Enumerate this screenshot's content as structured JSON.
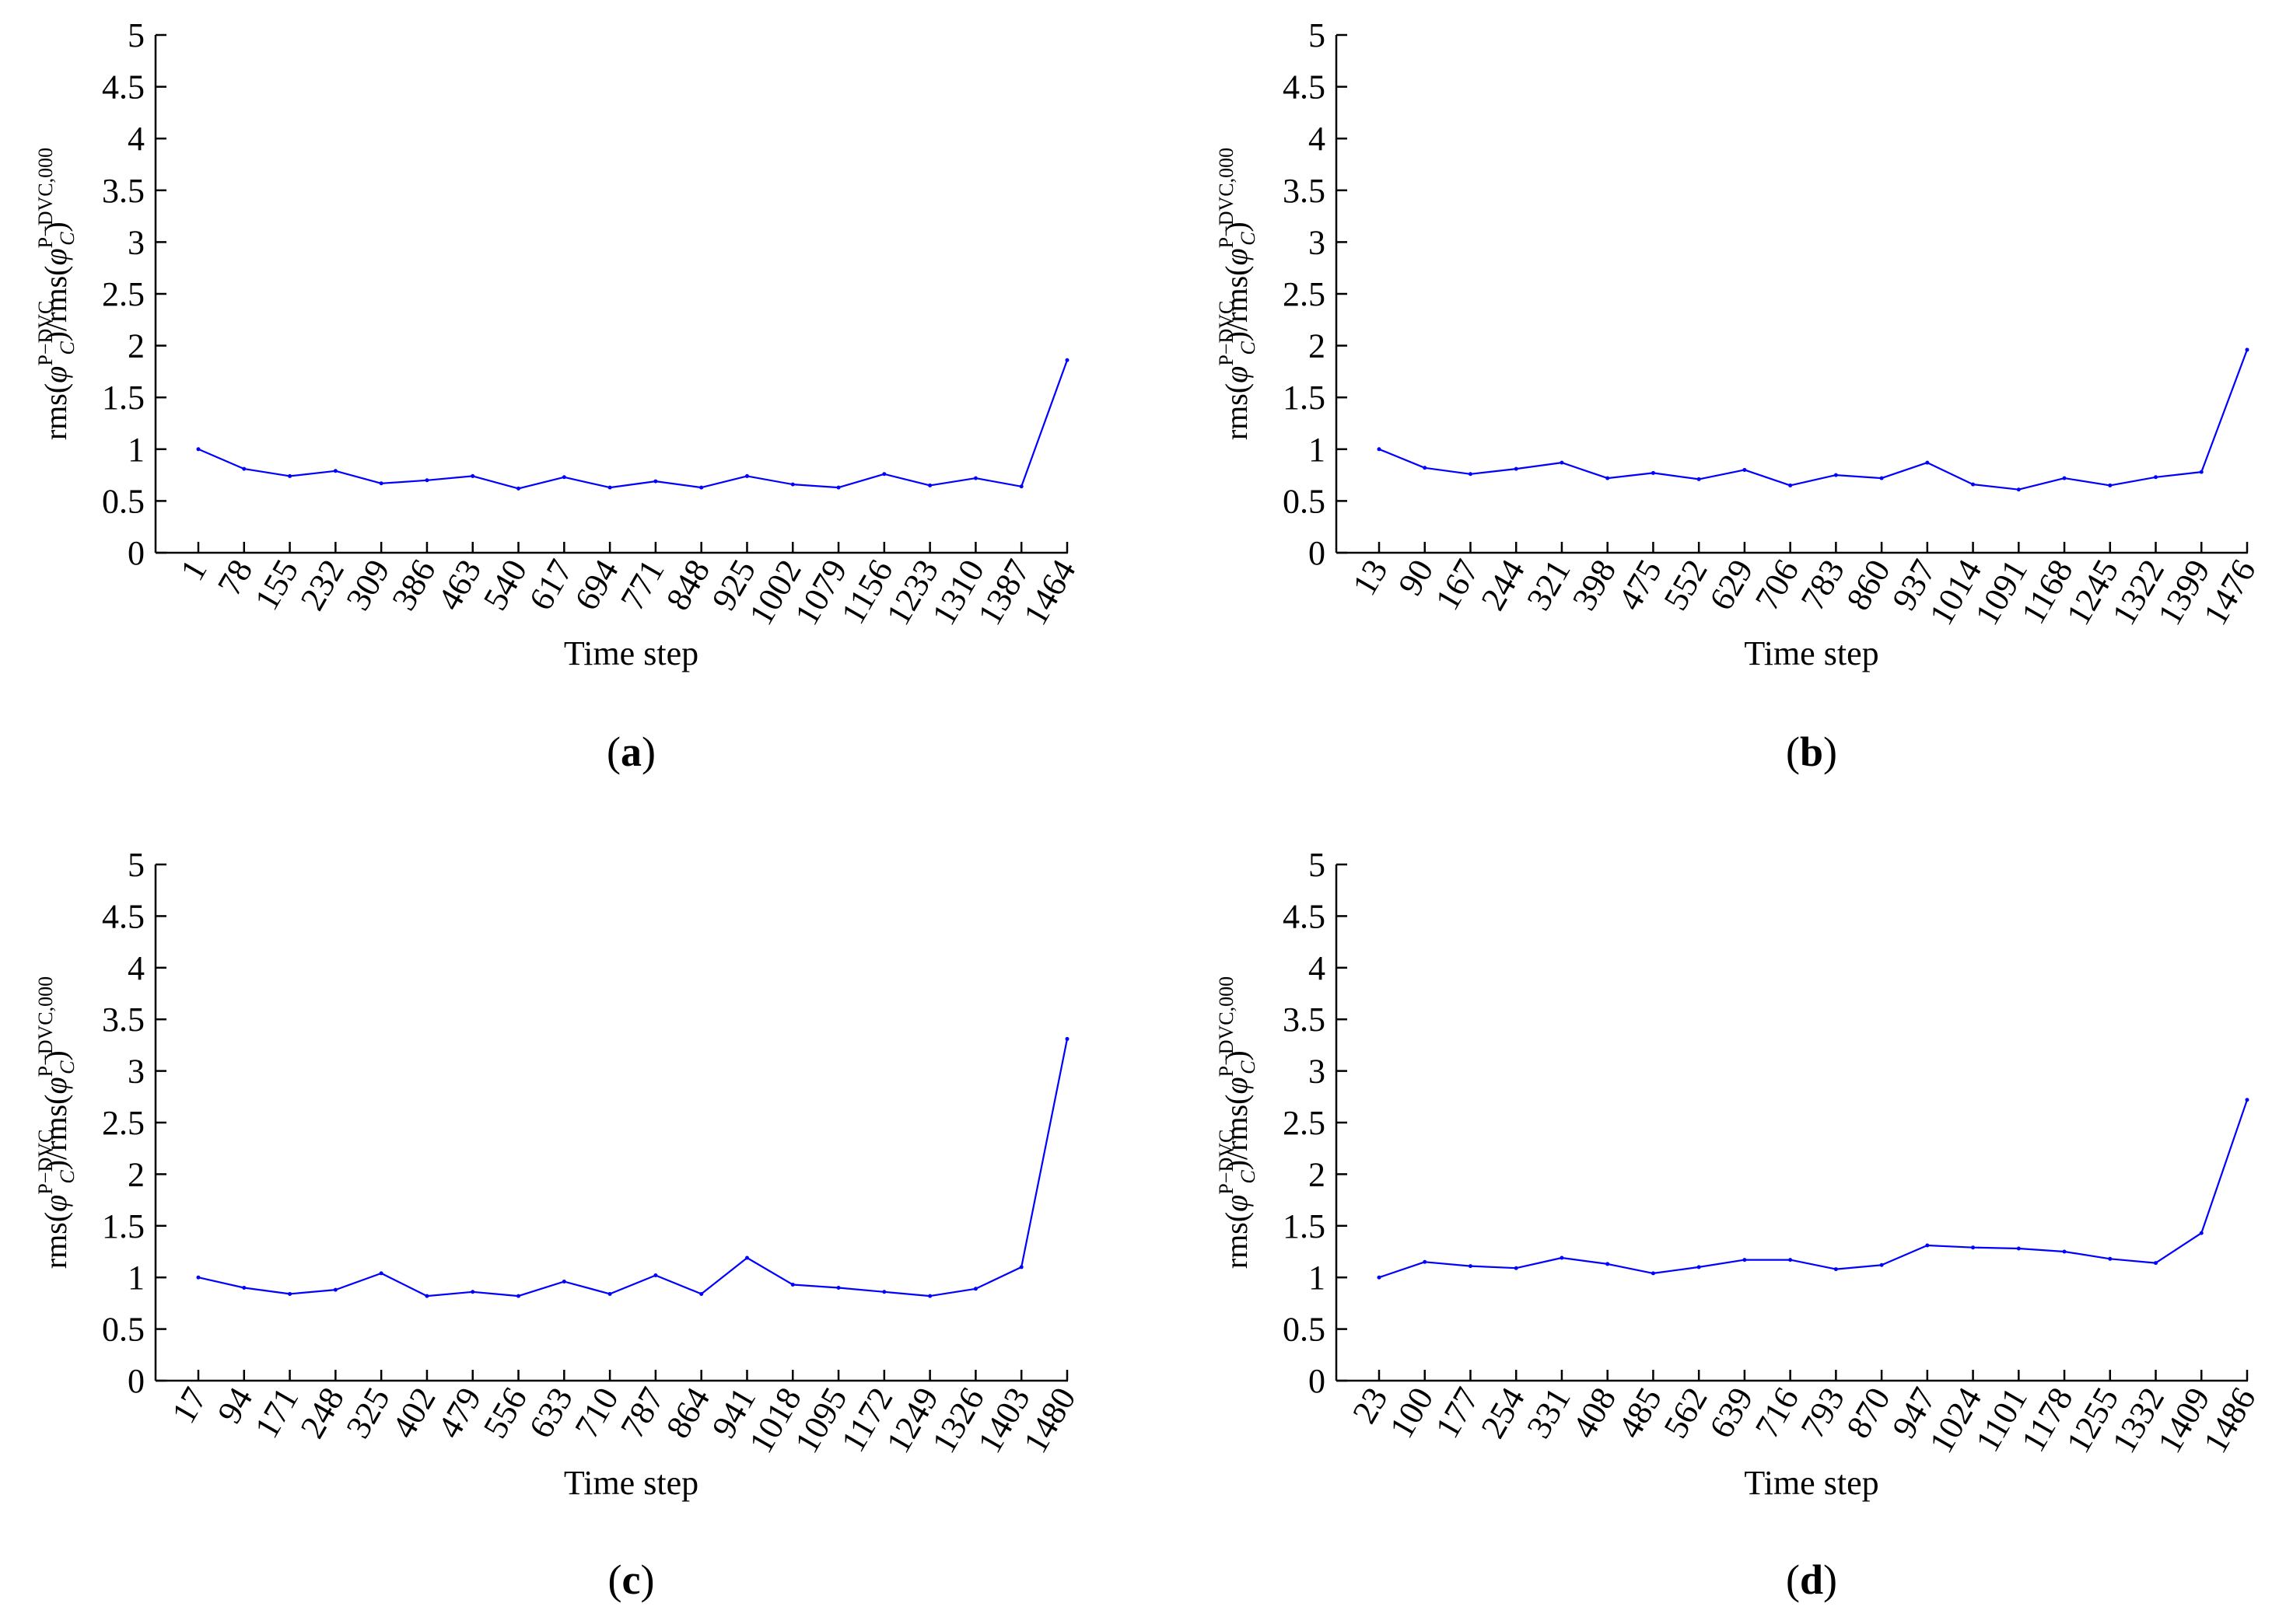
{
  "colors": {
    "line": "#0000ff",
    "axis": "#000000",
    "background": "#ffffff"
  },
  "chart_data": [
    {
      "type": "line",
      "caption": "(a)",
      "caption_letter": "a",
      "xlabel": "Time step",
      "ylabel": "rms(φ_C^{P−DVC})/rms(φ_C^{P−DVC,000})",
      "ylim": [
        0,
        5
      ],
      "yticks": [
        "0",
        "0.5",
        "1",
        "1.5",
        "2",
        "2.5",
        "3",
        "3.5",
        "4",
        "4.5",
        "5"
      ],
      "grid": false,
      "categories": [
        "1",
        "78",
        "155",
        "232",
        "309",
        "386",
        "463",
        "540",
        "617",
        "694",
        "771",
        "848",
        "925",
        "1002",
        "1079",
        "1156",
        "1233",
        "1310",
        "1387",
        "1464"
      ],
      "series": [
        {
          "values": [
            1.0,
            0.81,
            0.74,
            0.79,
            0.67,
            0.7,
            0.74,
            0.62,
            0.73,
            0.63,
            0.69,
            0.63,
            0.74,
            0.66,
            0.63,
            0.76,
            0.65,
            0.72,
            0.64,
            1.86
          ]
        }
      ]
    },
    {
      "type": "line",
      "caption": "(b)",
      "caption_letter": "b",
      "xlabel": "Time step",
      "ylabel": "rms(φ_C^{P−DVC})/rms(φ_C^{P−DVC,000})",
      "ylim": [
        0,
        5
      ],
      "yticks": [
        "0",
        "0.5",
        "1",
        "1.5",
        "2",
        "2.5",
        "3",
        "3.5",
        "4",
        "4.5",
        "5"
      ],
      "grid": false,
      "categories": [
        "13",
        "90",
        "167",
        "244",
        "321",
        "398",
        "475",
        "552",
        "629",
        "706",
        "783",
        "860",
        "937",
        "1014",
        "1091",
        "1168",
        "1245",
        "1322",
        "1399",
        "1476"
      ],
      "series": [
        {
          "values": [
            1.0,
            0.82,
            0.76,
            0.81,
            0.87,
            0.72,
            0.77,
            0.71,
            0.8,
            0.65,
            0.75,
            0.72,
            0.87,
            0.66,
            0.61,
            0.72,
            0.65,
            0.73,
            0.78,
            1.96
          ]
        }
      ]
    },
    {
      "type": "line",
      "caption": "(c)",
      "caption_letter": "c",
      "xlabel": "Time step",
      "ylabel": "rms(φ_C^{P−DVC})/rms(φ_C^{P−DVC,000})",
      "ylim": [
        0,
        5
      ],
      "yticks": [
        "0",
        "0.5",
        "1",
        "1.5",
        "2",
        "2.5",
        "3",
        "3.5",
        "4",
        "4.5",
        "5"
      ],
      "grid": false,
      "categories": [
        "17",
        "94",
        "171",
        "248",
        "325",
        "402",
        "479",
        "556",
        "633",
        "710",
        "787",
        "864",
        "941",
        "1018",
        "1095",
        "1172",
        "1249",
        "1326",
        "1403",
        "1480"
      ],
      "series": [
        {
          "values": [
            1.0,
            0.9,
            0.84,
            0.88,
            1.04,
            0.82,
            0.86,
            0.82,
            0.96,
            0.84,
            1.02,
            0.84,
            1.19,
            0.93,
            0.9,
            0.86,
            0.82,
            0.89,
            1.1,
            3.31
          ]
        }
      ]
    },
    {
      "type": "line",
      "caption": "(d)",
      "caption_letter": "d",
      "xlabel": "Time step",
      "ylabel": "rms(φ_C^{P−DVC})/rms(φ_C^{P−DVC,000})",
      "ylim": [
        0,
        5
      ],
      "yticks": [
        "0",
        "0.5",
        "1",
        "1.5",
        "2",
        "2.5",
        "3",
        "3.5",
        "4",
        "4.5",
        "5"
      ],
      "grid": false,
      "categories": [
        "23",
        "100",
        "177",
        "254",
        "331",
        "408",
        "485",
        "562",
        "639",
        "716",
        "793",
        "870",
        "947",
        "1024",
        "1101",
        "1178",
        "1255",
        "1332",
        "1409",
        "1486"
      ],
      "series": [
        {
          "values": [
            1.0,
            1.15,
            1.11,
            1.09,
            1.19,
            1.13,
            1.04,
            1.1,
            1.17,
            1.17,
            1.08,
            1.12,
            1.31,
            1.29,
            1.28,
            1.25,
            1.18,
            1.14,
            1.43,
            2.72
          ]
        }
      ]
    }
  ]
}
